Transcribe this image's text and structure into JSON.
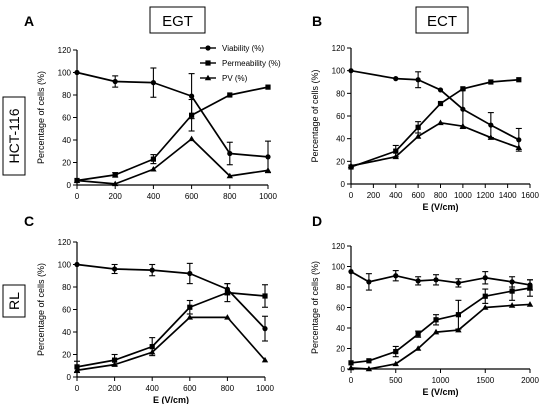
{
  "figure": {
    "column_headers": [
      "EGT",
      "ECT"
    ],
    "row_labels": [
      "HCT-116",
      "RL"
    ]
  },
  "chart_data": [
    {
      "panel": "A",
      "type": "line",
      "xlabel": "",
      "ylabel": "Percentage of cells (%)",
      "xlim": [
        0,
        1000
      ],
      "ylim": [
        0,
        120
      ],
      "xticks": [
        0,
        200,
        400,
        600,
        800,
        1000
      ],
      "yticks": [
        0,
        20,
        40,
        60,
        80,
        100,
        120
      ],
      "legend": {
        "placement": "top-right"
      },
      "series": [
        {
          "name": "Viability (%)",
          "marker": "circle",
          "x": [
            0,
            200,
            400,
            600,
            800,
            1000
          ],
          "y": [
            100,
            92,
            91,
            79,
            28,
            25
          ],
          "err": [
            0,
            5,
            13,
            20,
            10,
            14
          ]
        },
        {
          "name": "Permeability (%)",
          "marker": "square",
          "x": [
            0,
            200,
            400,
            600,
            800,
            1000
          ],
          "y": [
            4,
            9,
            23,
            62,
            80,
            87
          ],
          "err": [
            0,
            2,
            4,
            14,
            0,
            0
          ]
        },
        {
          "name": "PV (%)",
          "marker": "triangle",
          "x": [
            0,
            200,
            400,
            600,
            800,
            1000
          ],
          "y": [
            4,
            1,
            14,
            41,
            8,
            13
          ],
          "err": [
            0,
            0,
            0,
            0,
            0,
            0
          ]
        }
      ]
    },
    {
      "panel": "B",
      "type": "line",
      "xlabel": "E (V/cm)",
      "ylabel": "Percentage of cells (%)",
      "xlim": [
        0,
        1600
      ],
      "ylim": [
        0,
        120
      ],
      "xticks": [
        0,
        200,
        400,
        600,
        800,
        1000,
        1200,
        1400,
        1600
      ],
      "yticks": [
        0,
        20,
        40,
        60,
        80,
        100,
        120
      ],
      "series": [
        {
          "name": "Viability (%)",
          "marker": "circle",
          "x": [
            0,
            400,
            600,
            800,
            1000,
            1250,
            1500
          ],
          "y": [
            100,
            93,
            92,
            83,
            66,
            52,
            39
          ],
          "err": [
            0,
            0,
            7,
            0,
            17,
            11,
            10
          ]
        },
        {
          "name": "Permeability (%)",
          "marker": "square",
          "x": [
            0,
            400,
            600,
            800,
            1000,
            1250,
            1500
          ],
          "y": [
            15,
            29,
            50,
            71,
            84,
            90,
            92
          ],
          "err": [
            0,
            5,
            5,
            0,
            0,
            0,
            0
          ]
        },
        {
          "name": "PV (%)",
          "marker": "triangle",
          "x": [
            0,
            400,
            600,
            800,
            1000,
            1250,
            1500
          ],
          "y": [
            16,
            24,
            42,
            54,
            51,
            41,
            32
          ],
          "err": [
            0,
            0,
            0,
            0,
            0,
            0,
            0
          ]
        }
      ]
    },
    {
      "panel": "C",
      "type": "line",
      "xlabel": "E (V/cm)",
      "ylabel": "Percentage of cells (%)",
      "xlim": [
        0,
        1000
      ],
      "ylim": [
        0,
        120
      ],
      "xticks": [
        0,
        200,
        400,
        600,
        800,
        1000
      ],
      "yticks": [
        0,
        20,
        40,
        60,
        80,
        100,
        120
      ],
      "series": [
        {
          "name": "Viability (%)",
          "marker": "circle",
          "x": [
            0,
            200,
            400,
            600,
            800,
            1000
          ],
          "y": [
            100,
            96,
            95,
            92,
            78,
            43
          ],
          "err": [
            0,
            4,
            5,
            9,
            5,
            11
          ]
        },
        {
          "name": "Permeability (%)",
          "marker": "square",
          "x": [
            0,
            200,
            400,
            600,
            800,
            1000
          ],
          "y": [
            9,
            15,
            27,
            62,
            75,
            72
          ],
          "err": [
            5,
            5,
            8,
            6,
            8,
            10
          ]
        },
        {
          "name": "PV (%)",
          "marker": "triangle",
          "x": [
            0,
            200,
            400,
            600,
            800,
            1000
          ],
          "y": [
            6,
            11,
            22,
            53,
            53,
            15
          ],
          "err": [
            0,
            0,
            0,
            0,
            0,
            0
          ]
        }
      ]
    },
    {
      "panel": "D",
      "type": "line",
      "xlabel": "E (V/cm)",
      "ylabel": "Percentage of cells (%)",
      "xlim": [
        0,
        2000
      ],
      "ylim": [
        0,
        120
      ],
      "xticks": [
        0,
        500,
        1000,
        1500,
        2000
      ],
      "yticks": [
        0,
        20,
        40,
        60,
        80,
        100,
        120
      ],
      "series": [
        {
          "name": "Viability (%)",
          "marker": "circle",
          "x": [
            0,
            200,
            500,
            750,
            950,
            1200,
            1500,
            1800,
            2000
          ],
          "y": [
            95,
            85,
            91,
            86,
            87,
            84,
            89,
            85,
            82
          ],
          "err": [
            0,
            8,
            5,
            4,
            5,
            4,
            6,
            5,
            5
          ]
        },
        {
          "name": "Permeability (%)",
          "marker": "square",
          "x": [
            0,
            200,
            500,
            750,
            950,
            1200,
            1500,
            1800,
            2000
          ],
          "y": [
            6,
            8,
            17,
            34,
            48,
            53,
            71,
            76,
            79
          ],
          "err": [
            0,
            0,
            5,
            3,
            5,
            14,
            7,
            9,
            8
          ]
        },
        {
          "name": "PV (%)",
          "marker": "triangle",
          "x": [
            0,
            200,
            500,
            750,
            950,
            1200,
            1500,
            1800,
            2000
          ],
          "y": [
            1,
            0,
            5,
            20,
            36,
            38,
            60,
            62,
            63
          ],
          "err": [
            0,
            0,
            0,
            0,
            0,
            0,
            0,
            0,
            0
          ]
        }
      ]
    }
  ]
}
